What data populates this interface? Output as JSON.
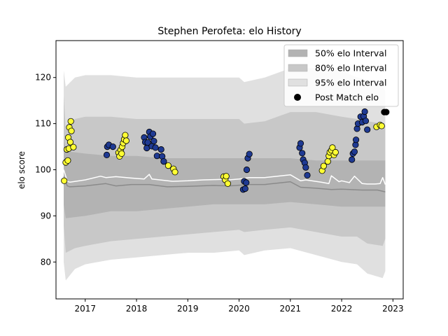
{
  "chart_data": {
    "type": "scatter",
    "title": "Stephen Perofeta: elo History",
    "xlabel": "",
    "ylabel": "elo score",
    "xlim": [
      2016.43,
      2023.2
    ],
    "ylim": [
      72,
      128
    ],
    "x_ticks": [
      2017,
      2018,
      2019,
      2020,
      2021,
      2022,
      2023
    ],
    "x_tick_labels": [
      "2017",
      "2018",
      "2019",
      "2020",
      "2021",
      "2022",
      "2023"
    ],
    "y_ticks": [
      80,
      90,
      100,
      110,
      120
    ],
    "y_tick_labels": [
      "80",
      "90",
      "100",
      "110",
      "120"
    ],
    "legend": {
      "position": "top-right",
      "entries": [
        "50% elo Interval",
        "80% elo Interval",
        "95% elo Interval",
        "Post Match elo"
      ]
    },
    "colors": {
      "band50": "#b3b3b3",
      "band80": "#c8c8c8",
      "band95": "#e0e0e0",
      "median_line": "#ffffff",
      "mean_line": "#8a8a8a",
      "point_yellow": "#ffff33",
      "point_blue": "#1f3a93",
      "point_black": "#000000"
    },
    "median_line": {
      "x": [
        2016.58,
        2016.65,
        2016.7,
        2017.0,
        2017.3,
        2017.4,
        2017.6,
        2017.9,
        2018.15,
        2018.25,
        2018.3,
        2018.7,
        2019.0,
        2019.3,
        2019.7,
        2019.75,
        2019.8,
        2020.0,
        2020.2,
        2020.5,
        2021.0,
        2021.2,
        2021.3,
        2021.6,
        2021.75,
        2021.8,
        2021.95,
        2022.0,
        2022.15,
        2022.25,
        2022.4,
        2022.5,
        2022.65,
        2022.75,
        2022.8,
        2022.85
      ],
      "y": [
        100.0,
        97.5,
        97.3,
        97.8,
        98.6,
        98.3,
        98.5,
        98.2,
        98.0,
        99.0,
        98.0,
        97.5,
        97.6,
        97.8,
        97.9,
        97.5,
        97.8,
        98.0,
        98.3,
        98.3,
        98.9,
        97.6,
        97.8,
        97.3,
        97.0,
        98.7,
        97.4,
        97.6,
        97.2,
        98.6,
        97.0,
        96.9,
        96.9,
        97.0,
        98.3,
        96.8
      ]
    },
    "mean_line": {
      "x": [
        2016.58,
        2016.65,
        2016.7,
        2017.0,
        2017.4,
        2017.6,
        2017.9,
        2018.25,
        2018.6,
        2019.0,
        2019.5,
        2019.8,
        2020.2,
        2020.5,
        2021.0,
        2021.2,
        2021.5,
        2021.8,
        2022.0,
        2022.4,
        2022.7,
        2022.85
      ],
      "y": [
        98.5,
        96.5,
        96.3,
        96.5,
        97.0,
        96.5,
        96.8,
        96.8,
        96.3,
        96.4,
        96.6,
        96.5,
        96.8,
        96.8,
        97.4,
        96.2,
        96.0,
        95.7,
        95.8,
        95.6,
        95.6,
        95.2
      ]
    },
    "band50": {
      "x": [
        2016.58,
        2016.62,
        2017.0,
        2017.5,
        2018.0,
        2018.5,
        2019.0,
        2019.5,
        2020.0,
        2020.5,
        2021.0,
        2021.5,
        2022.0,
        2022.5,
        2022.85
      ],
      "low": [
        92.5,
        89.5,
        90.0,
        91.0,
        91.0,
        91.5,
        92.0,
        92.5,
        92.5,
        92.5,
        93.0,
        92.5,
        92.0,
        92.0,
        92.0
      ],
      "high": [
        107.0,
        104.0,
        103.5,
        103.0,
        103.0,
        102.5,
        102.5,
        102.5,
        102.5,
        102.5,
        102.5,
        102.0,
        102.0,
        102.0,
        102.0
      ]
    },
    "band80": {
      "x": [
        2016.58,
        2016.62,
        2016.8,
        2017.0,
        2017.5,
        2018.0,
        2018.5,
        2019.0,
        2019.5,
        2020.0,
        2020.1,
        2020.5,
        2021.0,
        2021.5,
        2022.0,
        2022.3,
        2022.5,
        2022.8,
        2022.85
      ],
      "low": [
        88.0,
        82.0,
        83.0,
        83.5,
        84.5,
        85.0,
        85.5,
        86.0,
        86.5,
        87.0,
        86.5,
        87.0,
        87.5,
        86.5,
        85.5,
        85.5,
        84.0,
        83.5,
        85.0
      ],
      "high": [
        116.0,
        109.0,
        111.0,
        111.5,
        111.5,
        111.0,
        111.0,
        111.0,
        111.0,
        111.0,
        110.0,
        110.5,
        112.5,
        112.5,
        111.5,
        111.0,
        110.5,
        110.0,
        109.5
      ]
    },
    "band95": {
      "x": [
        2016.58,
        2016.62,
        2016.8,
        2017.0,
        2017.5,
        2018.0,
        2018.5,
        2019.0,
        2019.5,
        2020.0,
        2020.1,
        2020.5,
        2021.0,
        2021.5,
        2022.0,
        2022.3,
        2022.5,
        2022.8,
        2022.85
      ],
      "low": [
        80.0,
        76.0,
        78.5,
        79.5,
        80.5,
        81.0,
        81.5,
        82.0,
        82.0,
        82.5,
        81.5,
        82.5,
        83.0,
        81.5,
        80.0,
        79.5,
        77.5,
        76.5,
        78.0
      ],
      "high": [
        121.5,
        118.0,
        120.0,
        120.5,
        120.5,
        120.0,
        120.0,
        120.0,
        120.0,
        120.0,
        119.0,
        120.0,
        122.0,
        122.0,
        121.5,
        120.0,
        119.5,
        118.5,
        117.0
      ]
    },
    "points": [
      {
        "x": 2016.59,
        "y": 97.6,
        "c": "yellow"
      },
      {
        "x": 2016.62,
        "y": 101.6,
        "c": "yellow"
      },
      {
        "x": 2016.66,
        "y": 102.0,
        "c": "yellow"
      },
      {
        "x": 2016.64,
        "y": 104.4,
        "c": "yellow"
      },
      {
        "x": 2016.68,
        "y": 104.6,
        "c": "yellow"
      },
      {
        "x": 2016.67,
        "y": 107.0,
        "c": "yellow"
      },
      {
        "x": 2016.71,
        "y": 106.0,
        "c": "yellow"
      },
      {
        "x": 2016.69,
        "y": 109.2,
        "c": "yellow"
      },
      {
        "x": 2016.73,
        "y": 108.4,
        "c": "yellow"
      },
      {
        "x": 2016.72,
        "y": 110.5,
        "c": "yellow"
      },
      {
        "x": 2016.77,
        "y": 104.9,
        "c": "yellow"
      },
      {
        "x": 2017.42,
        "y": 103.2,
        "c": "blue"
      },
      {
        "x": 2017.43,
        "y": 105.0,
        "c": "blue"
      },
      {
        "x": 2017.46,
        "y": 105.4,
        "c": "blue"
      },
      {
        "x": 2017.54,
        "y": 105.0,
        "c": "blue"
      },
      {
        "x": 2017.65,
        "y": 103.7,
        "c": "yellow"
      },
      {
        "x": 2017.67,
        "y": 102.9,
        "c": "yellow"
      },
      {
        "x": 2017.69,
        "y": 104.3,
        "c": "yellow"
      },
      {
        "x": 2017.71,
        "y": 103.5,
        "c": "yellow"
      },
      {
        "x": 2017.72,
        "y": 105.0,
        "c": "yellow"
      },
      {
        "x": 2017.74,
        "y": 105.8,
        "c": "yellow"
      },
      {
        "x": 2017.76,
        "y": 106.6,
        "c": "yellow"
      },
      {
        "x": 2017.78,
        "y": 107.5,
        "c": "yellow"
      },
      {
        "x": 2017.8,
        "y": 106.3,
        "c": "yellow"
      },
      {
        "x": 2018.15,
        "y": 107.0,
        "c": "blue"
      },
      {
        "x": 2018.17,
        "y": 106.0,
        "c": "blue"
      },
      {
        "x": 2018.2,
        "y": 104.7,
        "c": "blue"
      },
      {
        "x": 2018.22,
        "y": 105.9,
        "c": "blue"
      },
      {
        "x": 2018.25,
        "y": 108.2,
        "c": "blue"
      },
      {
        "x": 2018.27,
        "y": 107.2,
        "c": "blue"
      },
      {
        "x": 2018.3,
        "y": 105.1,
        "c": "blue"
      },
      {
        "x": 2018.32,
        "y": 107.8,
        "c": "blue"
      },
      {
        "x": 2018.34,
        "y": 106.2,
        "c": "blue"
      },
      {
        "x": 2018.37,
        "y": 104.8,
        "c": "blue"
      },
      {
        "x": 2018.4,
        "y": 103.0,
        "c": "blue"
      },
      {
        "x": 2018.48,
        "y": 104.4,
        "c": "blue"
      },
      {
        "x": 2018.5,
        "y": 102.9,
        "c": "blue"
      },
      {
        "x": 2018.53,
        "y": 101.8,
        "c": "blue"
      },
      {
        "x": 2018.62,
        "y": 100.9,
        "c": "yellow"
      },
      {
        "x": 2018.72,
        "y": 100.2,
        "c": "yellow"
      },
      {
        "x": 2018.75,
        "y": 99.5,
        "c": "yellow"
      },
      {
        "x": 2019.7,
        "y": 98.5,
        "c": "yellow"
      },
      {
        "x": 2019.73,
        "y": 97.8,
        "c": "yellow"
      },
      {
        "x": 2019.75,
        "y": 98.6,
        "c": "yellow"
      },
      {
        "x": 2019.78,
        "y": 97.0,
        "c": "yellow"
      },
      {
        "x": 2020.08,
        "y": 95.7,
        "c": "blue"
      },
      {
        "x": 2020.1,
        "y": 97.5,
        "c": "blue"
      },
      {
        "x": 2020.12,
        "y": 95.9,
        "c": "blue"
      },
      {
        "x": 2020.14,
        "y": 97.2,
        "c": "blue"
      },
      {
        "x": 2020.15,
        "y": 100.0,
        "c": "blue"
      },
      {
        "x": 2020.17,
        "y": 102.5,
        "c": "blue"
      },
      {
        "x": 2020.2,
        "y": 103.4,
        "c": "blue"
      },
      {
        "x": 2021.18,
        "y": 104.8,
        "c": "blue"
      },
      {
        "x": 2021.2,
        "y": 105.7,
        "c": "blue"
      },
      {
        "x": 2021.23,
        "y": 103.6,
        "c": "blue"
      },
      {
        "x": 2021.25,
        "y": 102.2,
        "c": "blue"
      },
      {
        "x": 2021.28,
        "y": 101.5,
        "c": "blue"
      },
      {
        "x": 2021.3,
        "y": 100.5,
        "c": "blue"
      },
      {
        "x": 2021.33,
        "y": 98.8,
        "c": "blue"
      },
      {
        "x": 2021.62,
        "y": 99.8,
        "c": "yellow"
      },
      {
        "x": 2021.65,
        "y": 100.8,
        "c": "yellow"
      },
      {
        "x": 2021.73,
        "y": 101.8,
        "c": "yellow"
      },
      {
        "x": 2021.75,
        "y": 103.0,
        "c": "yellow"
      },
      {
        "x": 2021.77,
        "y": 103.8,
        "c": "yellow"
      },
      {
        "x": 2021.8,
        "y": 104.2,
        "c": "yellow"
      },
      {
        "x": 2021.82,
        "y": 104.8,
        "c": "yellow"
      },
      {
        "x": 2021.85,
        "y": 103.2,
        "c": "yellow"
      },
      {
        "x": 2021.88,
        "y": 103.8,
        "c": "yellow"
      },
      {
        "x": 2022.2,
        "y": 102.2,
        "c": "blue"
      },
      {
        "x": 2022.22,
        "y": 103.5,
        "c": "blue"
      },
      {
        "x": 2022.25,
        "y": 103.9,
        "c": "blue"
      },
      {
        "x": 2022.27,
        "y": 105.4,
        "c": "blue"
      },
      {
        "x": 2022.28,
        "y": 106.5,
        "c": "blue"
      },
      {
        "x": 2022.3,
        "y": 108.9,
        "c": "blue"
      },
      {
        "x": 2022.32,
        "y": 110.0,
        "c": "blue"
      },
      {
        "x": 2022.37,
        "y": 111.5,
        "c": "blue"
      },
      {
        "x": 2022.4,
        "y": 110.3,
        "c": "blue"
      },
      {
        "x": 2022.43,
        "y": 111.6,
        "c": "blue"
      },
      {
        "x": 2022.45,
        "y": 112.6,
        "c": "blue"
      },
      {
        "x": 2022.47,
        "y": 110.6,
        "c": "blue"
      },
      {
        "x": 2022.5,
        "y": 108.7,
        "c": "blue"
      },
      {
        "x": 2022.68,
        "y": 109.3,
        "c": "yellow"
      },
      {
        "x": 2022.75,
        "y": 109.7,
        "c": "yellow"
      },
      {
        "x": 2022.78,
        "y": 109.5,
        "c": "yellow"
      },
      {
        "x": 2022.83,
        "y": 112.5,
        "c": "black"
      },
      {
        "x": 2022.87,
        "y": 112.5,
        "c": "black"
      }
    ]
  }
}
